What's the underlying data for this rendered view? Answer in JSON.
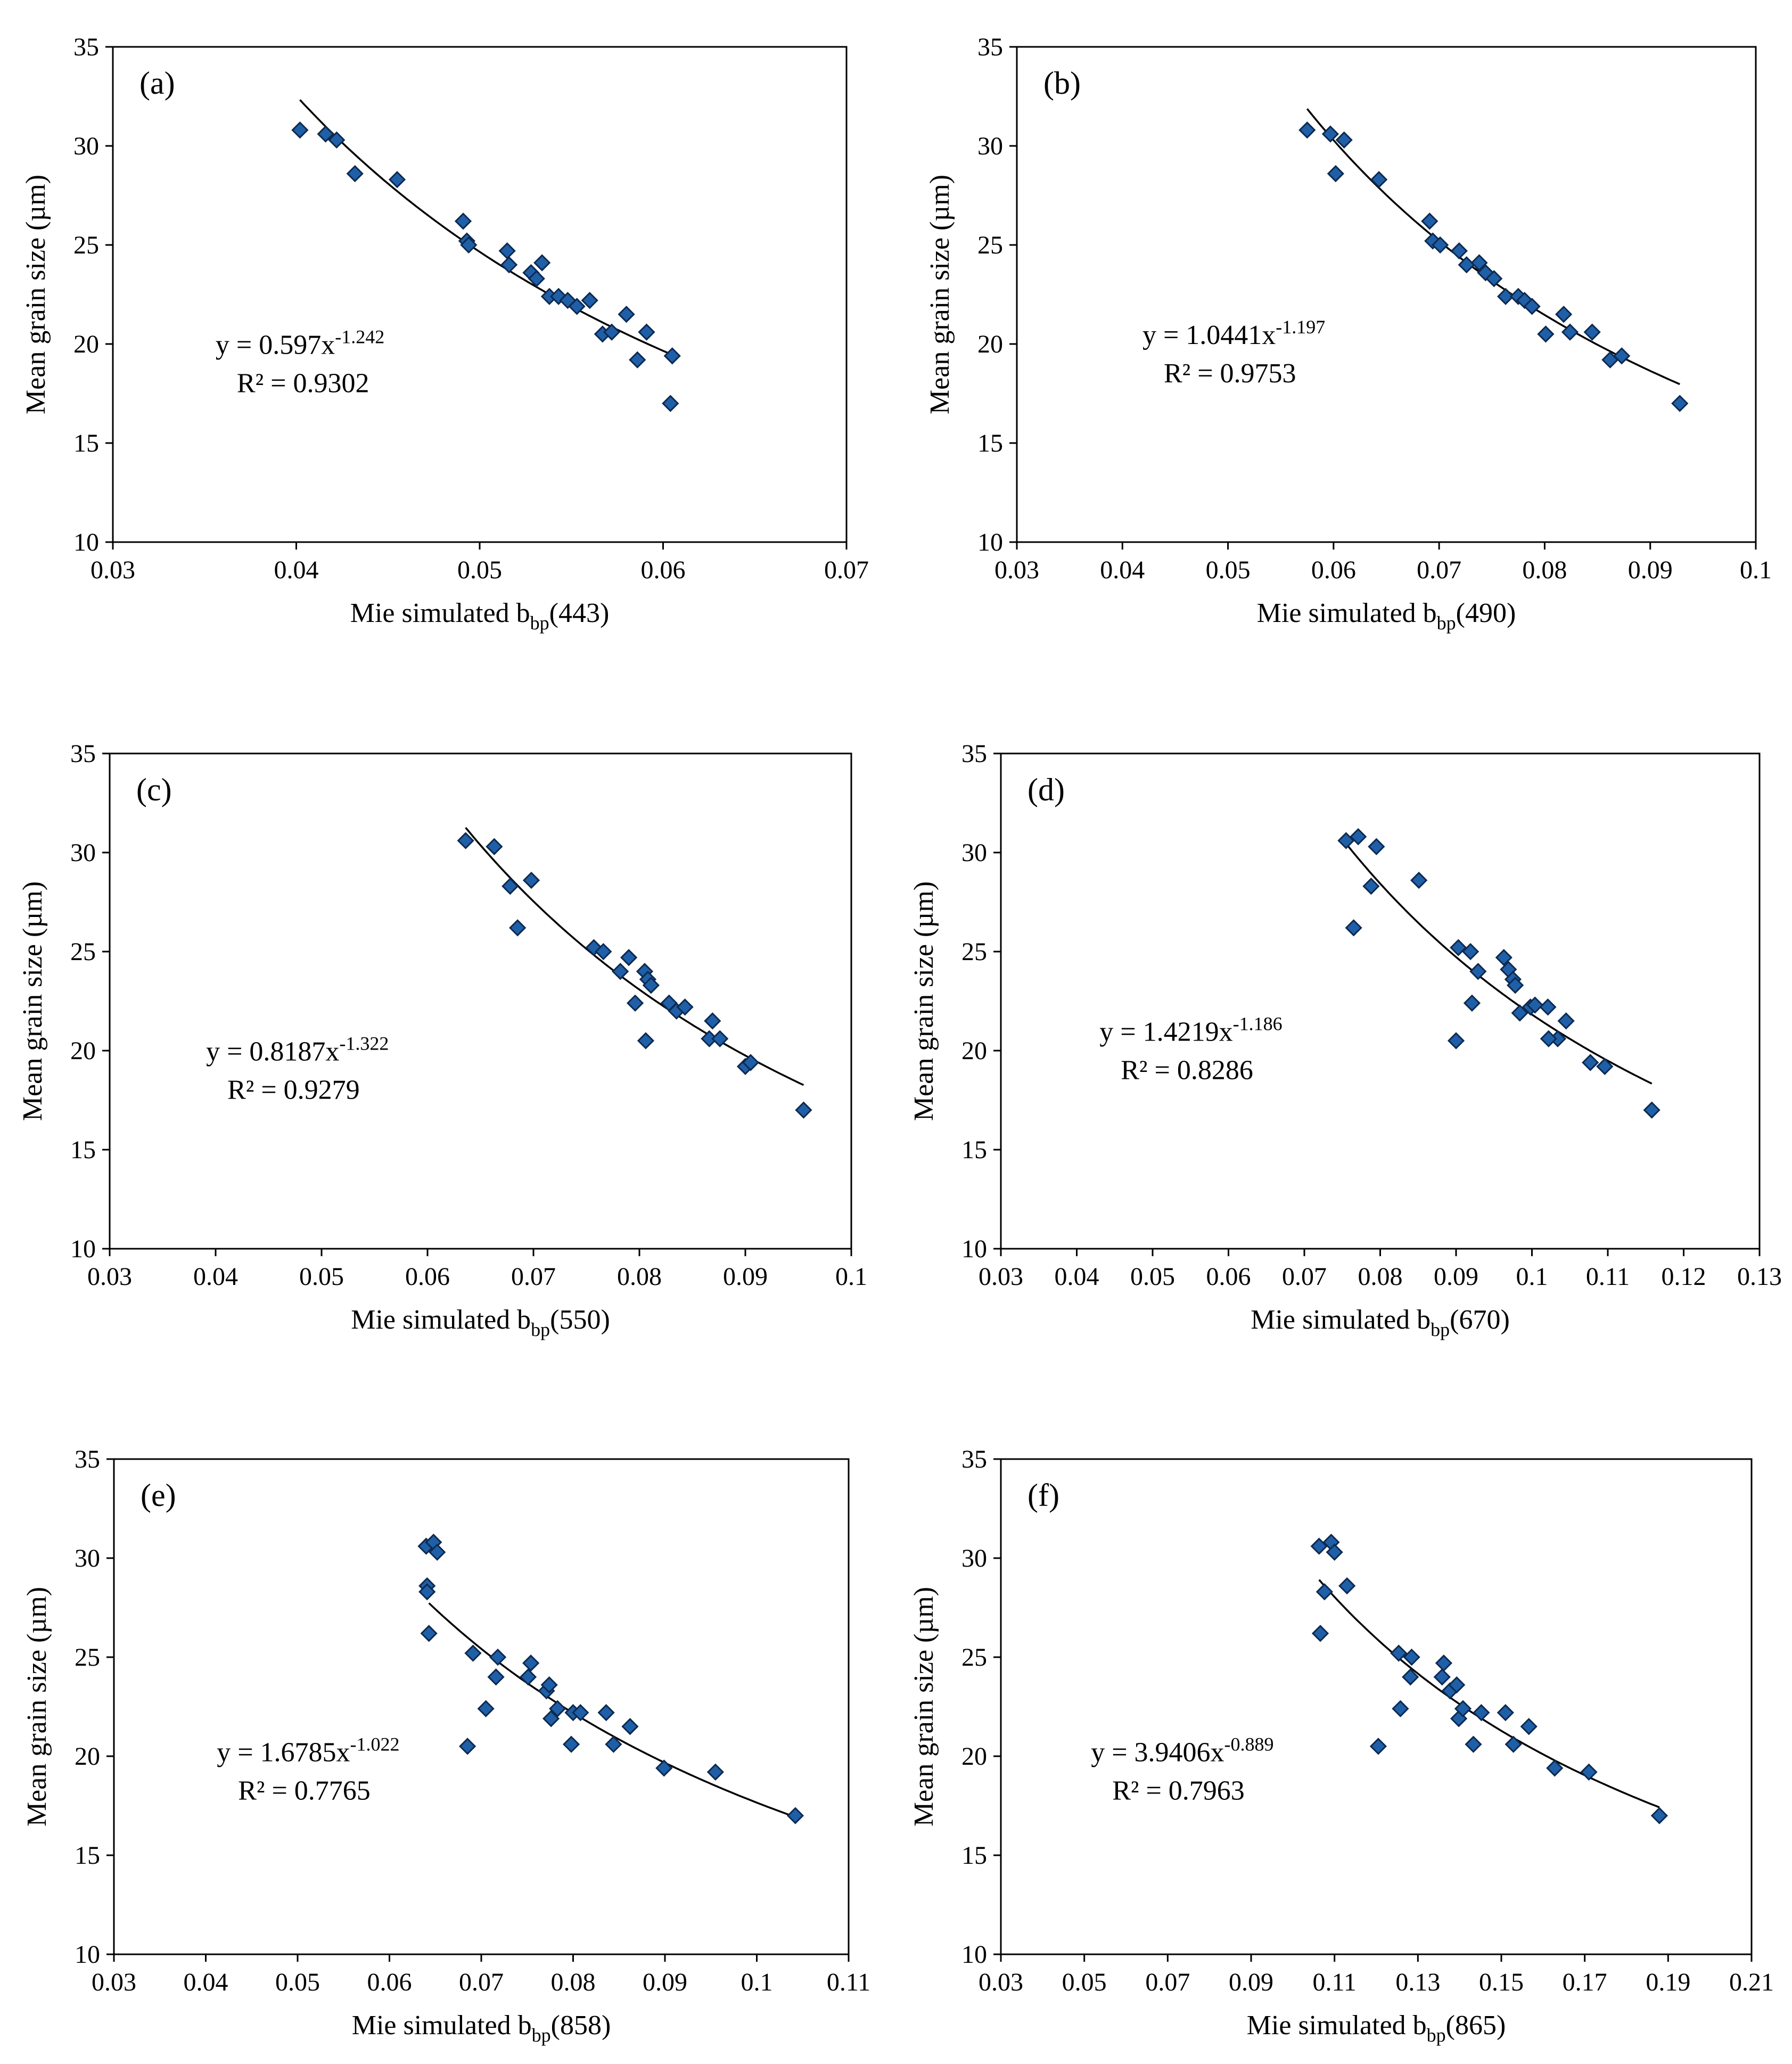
{
  "chart_data": [
    {
      "type": "scatter",
      "panel_label": "(a)",
      "xlabel_main": "Mie simulated b",
      "xlabel_sub": "bp",
      "xlabel_suffix": "(443)",
      "ylabel": "Mean grain size (µm)",
      "xlim": [
        0.03,
        0.07
      ],
      "xticks": [
        "0.03",
        "0.04",
        "0.05",
        "0.06",
        "0.07"
      ],
      "ylim": [
        10,
        35
      ],
      "yticks": [
        "10",
        "15",
        "20",
        "25",
        "30",
        "35"
      ],
      "equation_base": "y = 0.597x",
      "equation_exp": "-1.242",
      "r2": "R² = 0.9302",
      "fit": {
        "type": "power",
        "coef": 0.597,
        "exp": -1.242,
        "x_range": [
          0.0402,
          0.0605
        ]
      },
      "x": [
        0.0402,
        0.0416,
        0.0422,
        0.0432,
        0.0455,
        0.0491,
        0.0493,
        0.0494,
        0.0515,
        0.0516,
        0.0528,
        0.0531,
        0.0534,
        0.0538,
        0.0543,
        0.0548,
        0.0553,
        0.056,
        0.0567,
        0.0572,
        0.058,
        0.0586,
        0.0591,
        0.0604,
        0.0605
      ],
      "y": [
        30.8,
        30.6,
        30.3,
        28.6,
        28.3,
        26.2,
        25.2,
        25.0,
        24.7,
        24.0,
        23.6,
        23.3,
        24.1,
        22.4,
        22.4,
        22.2,
        21.9,
        22.2,
        20.5,
        20.6,
        21.5,
        19.2,
        20.6,
        17.0,
        19.4
      ]
    },
    {
      "type": "scatter",
      "panel_label": "(b)",
      "xlabel_main": "Mie simulated b",
      "xlabel_sub": "bp",
      "xlabel_suffix": "(490)",
      "ylabel": "Mean grain size (µm)",
      "xlim": [
        0.03,
        0.1
      ],
      "xticks": [
        "0.03",
        "0.04",
        "0.05",
        "0.06",
        "0.07",
        "0.08",
        "0.09",
        "0.1"
      ],
      "ylim": [
        10,
        35
      ],
      "yticks": [
        "10",
        "15",
        "20",
        "25",
        "30",
        "35"
      ],
      "equation_base": "y = 1.0441x",
      "equation_exp": "-1.197",
      "r2": "R² = 0.9753",
      "fit": {
        "type": "power",
        "coef": 1.0441,
        "exp": -1.197,
        "x_range": [
          0.0575,
          0.0928
        ]
      },
      "x": [
        0.0575,
        0.0597,
        0.0602,
        0.061,
        0.0643,
        0.0691,
        0.0694,
        0.0701,
        0.0719,
        0.0726,
        0.0738,
        0.0744,
        0.0752,
        0.0763,
        0.0775,
        0.0781,
        0.0788,
        0.0801,
        0.0818,
        0.0824,
        0.0845,
        0.0862,
        0.0873,
        0.0928
      ],
      "y": [
        30.8,
        30.6,
        28.6,
        30.3,
        28.3,
        26.2,
        25.2,
        25.0,
        24.7,
        24.0,
        24.1,
        23.6,
        23.3,
        22.4,
        22.4,
        22.2,
        21.9,
        20.5,
        21.5,
        20.6,
        20.6,
        19.2,
        19.4,
        17.0
      ]
    },
    {
      "type": "scatter",
      "panel_label": "(c)",
      "xlabel_main": "Mie simulated b",
      "xlabel_sub": "bp",
      "xlabel_suffix": "(550)",
      "ylabel": "Mean grain size (µm)",
      "xlim": [
        0.03,
        0.1
      ],
      "xticks": [
        "0.03",
        "0.04",
        "0.05",
        "0.06",
        "0.07",
        "0.08",
        "0.09",
        "0.1"
      ],
      "ylim": [
        10,
        35
      ],
      "yticks": [
        "10",
        "15",
        "20",
        "25",
        "30",
        "35"
      ],
      "equation_base": "y = 0.8187x",
      "equation_exp": "-1.322",
      "r2": "R² = 0.9279",
      "fit": {
        "type": "power",
        "coef": 0.8187,
        "exp": -1.322,
        "x_range": [
          0.0636,
          0.0955
        ]
      },
      "x": [
        0.0636,
        0.0663,
        0.0678,
        0.0685,
        0.0698,
        0.0757,
        0.0766,
        0.0782,
        0.079,
        0.0796,
        0.0805,
        0.0808,
        0.0811,
        0.0828,
        0.0835,
        0.0843,
        0.0806,
        0.0866,
        0.0869,
        0.0876,
        0.09,
        0.0905,
        0.0955
      ],
      "y": [
        30.6,
        30.3,
        28.3,
        26.2,
        28.6,
        25.2,
        25.0,
        24.0,
        24.7,
        22.4,
        24.0,
        23.6,
        23.3,
        22.4,
        22.0,
        22.2,
        20.5,
        20.6,
        21.5,
        20.6,
        19.2,
        19.4,
        17.0
      ]
    },
    {
      "type": "scatter",
      "panel_label": "(d)",
      "xlabel_main": "Mie simulated b",
      "xlabel_sub": "bp",
      "xlabel_suffix": "(670)",
      "ylabel": "Mean grain size (µm)",
      "xlim": [
        0.03,
        0.13
      ],
      "xticks": [
        "0.03",
        "0.04",
        "0.05",
        "0.06",
        "0.07",
        "0.08",
        "0.09",
        "0.1",
        "0.11",
        "0.12",
        "0.13"
      ],
      "ylim": [
        10,
        35
      ],
      "yticks": [
        "10",
        "15",
        "20",
        "25",
        "30",
        "35"
      ],
      "equation_base": "y = 1.4219x",
      "equation_exp": "-1.186",
      "r2": "R² = 0.8286",
      "fit": {
        "type": "power",
        "coef": 1.4219,
        "exp": -1.186,
        "x_range": [
          0.0755,
          0.1158
        ]
      },
      "x": [
        0.0755,
        0.0771,
        0.0795,
        0.0788,
        0.0765,
        0.0851,
        0.0903,
        0.0919,
        0.0929,
        0.0963,
        0.0969,
        0.0975,
        0.0978,
        0.0921,
        0.0984,
        0.0998,
        0.1004,
        0.1021,
        0.1034,
        0.1045,
        0.1022,
        0.1077,
        0.1096,
        0.09,
        0.1158
      ],
      "y": [
        30.6,
        30.8,
        30.3,
        28.3,
        26.2,
        28.6,
        25.2,
        25.0,
        24.0,
        24.7,
        24.1,
        23.6,
        23.3,
        22.4,
        21.9,
        22.2,
        22.3,
        22.2,
        20.6,
        21.5,
        20.6,
        19.4,
        19.2,
        20.5,
        17.0
      ]
    },
    {
      "type": "scatter",
      "panel_label": "(e)",
      "xlabel_main": "Mie simulated b",
      "xlabel_sub": "bp",
      "xlabel_suffix": "(858)",
      "ylabel": "Mean grain size (µm)",
      "xlim": [
        0.03,
        0.11
      ],
      "xticks": [
        "0.03",
        "0.04",
        "0.05",
        "0.06",
        "0.07",
        "0.08",
        "0.09",
        "0.1",
        "0.11"
      ],
      "ylim": [
        10,
        35
      ],
      "yticks": [
        "10",
        "15",
        "20",
        "25",
        "30",
        "35"
      ],
      "equation_base": "y = 1.6785x",
      "equation_exp": "-1.022",
      "r2": "R² = 0.7765",
      "fit": {
        "type": "power",
        "coef": 1.6785,
        "exp": -1.022,
        "x_range": [
          0.0643,
          0.1042
        ]
      },
      "x": [
        0.064,
        0.0648,
        0.0652,
        0.0641,
        0.0641,
        0.0643,
        0.0691,
        0.0705,
        0.0716,
        0.0718,
        0.0751,
        0.0754,
        0.0771,
        0.0774,
        0.0776,
        0.0783,
        0.08,
        0.0808,
        0.0836,
        0.0844,
        0.0862,
        0.0685,
        0.0798,
        0.0899,
        0.0955,
        0.1042
      ],
      "y": [
        30.6,
        30.8,
        30.3,
        28.6,
        28.3,
        26.2,
        25.2,
        22.4,
        24.0,
        25.0,
        24.0,
        24.7,
        23.3,
        23.6,
        21.9,
        22.4,
        22.2,
        22.2,
        22.2,
        20.6,
        21.5,
        20.5,
        20.6,
        19.4,
        19.2,
        17.0
      ]
    },
    {
      "type": "scatter",
      "panel_label": "(f)",
      "xlabel_main": "Mie simulated b",
      "xlabel_sub": "bp",
      "xlabel_suffix": "(865)",
      "ylabel": "Mean grain size (µm)",
      "xlim": [
        0.03,
        0.21
      ],
      "xticks": [
        "0.03",
        "0.05",
        "0.07",
        "0.09",
        "0.11",
        "0.13",
        "0.15",
        "0.17",
        "0.19",
        "0.21"
      ],
      "ylim": [
        10,
        35
      ],
      "yticks": [
        "10",
        "15",
        "20",
        "25",
        "30",
        "35"
      ],
      "equation_base": "y = 3.9406x",
      "equation_exp": "-0.889",
      "r2": "R² = 0.7963",
      "fit": {
        "type": "power",
        "coef": 3.9406,
        "exp": -0.889,
        "x_range": [
          0.1063,
          0.1879
        ]
      },
      "x": [
        0.1063,
        0.1092,
        0.11,
        0.1076,
        0.113,
        0.1066,
        0.1254,
        0.1258,
        0.1282,
        0.1285,
        0.1358,
        0.1362,
        0.1377,
        0.1393,
        0.1398,
        0.1408,
        0.1433,
        0.1452,
        0.151,
        0.1529,
        0.1566,
        0.1205,
        0.1628,
        0.171,
        0.1879
      ],
      "y": [
        30.6,
        30.8,
        30.3,
        28.3,
        28.6,
        26.2,
        25.2,
        22.4,
        24.0,
        25.0,
        24.0,
        24.7,
        23.3,
        23.6,
        21.9,
        22.4,
        20.6,
        22.2,
        22.2,
        20.6,
        21.5,
        20.5,
        19.4,
        19.2,
        17.0
      ]
    }
  ],
  "style": {
    "marker_fill": "#1f5fa8",
    "marker_stroke": "#0d2a4f",
    "fit_line_color": "#000000"
  }
}
